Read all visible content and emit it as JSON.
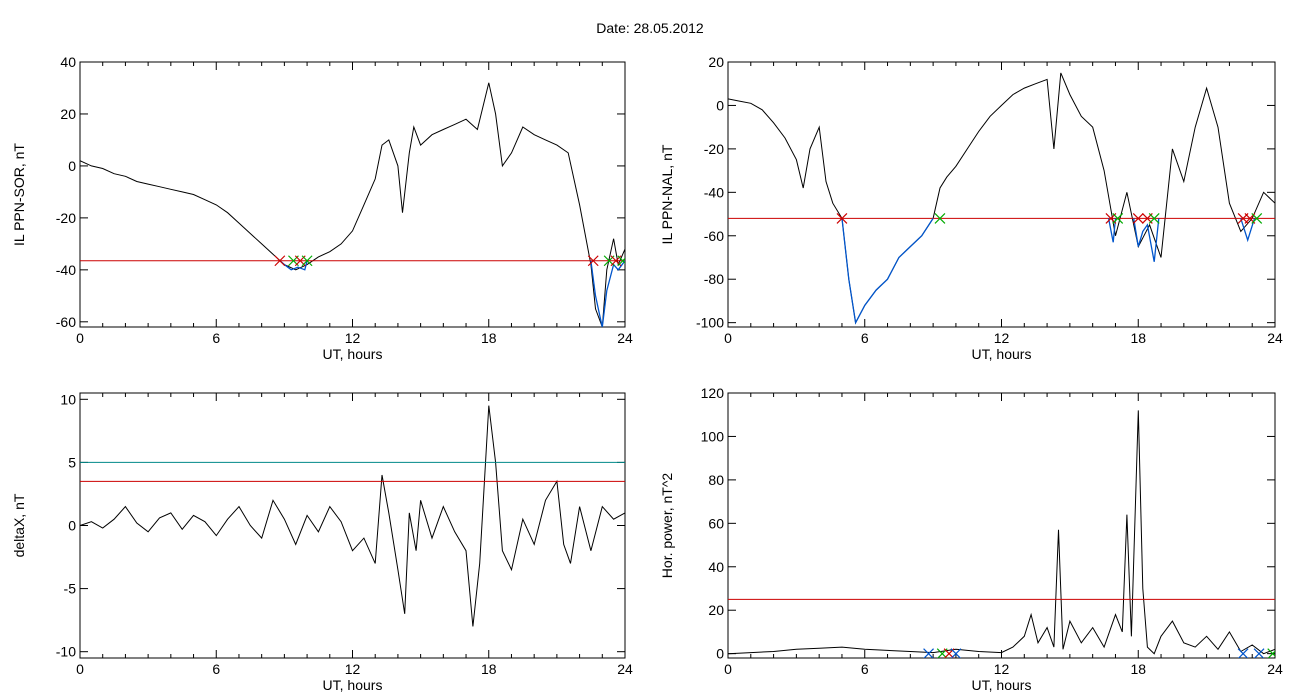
{
  "page": {
    "date_label": "Date:  28.05.2012"
  },
  "colors": {
    "trace": "#000000",
    "below_threshold": "#0055cc",
    "threshold": "#cc0000",
    "upper_threshold": "#008888",
    "marker_start": "#cc0000",
    "marker_end": "#00aa00",
    "marker_blue": "#0055cc"
  },
  "chart_data": [
    {
      "id": "ppn-sor",
      "type": "line",
      "xlabel": "UT, hours",
      "ylabel": "IL PPN-SOR, nT",
      "xlim": [
        0,
        24
      ],
      "ylim": [
        -62,
        40
      ],
      "xticks": [
        0,
        6,
        12,
        18,
        24
      ],
      "yticks": [
        -60,
        -40,
        -20,
        0,
        20,
        40
      ],
      "threshold": -36.5,
      "series": [
        {
          "x": [
            0,
            0.5,
            1,
            1.5,
            2,
            2.5,
            3,
            3.5,
            4,
            4.5,
            5,
            5.5,
            6,
            6.5,
            7,
            7.5,
            8,
            8.5,
            9,
            9.5,
            10,
            10.5,
            11,
            11.5,
            12,
            12.5,
            13,
            13.3,
            13.6,
            14,
            14.2,
            14.5,
            14.7,
            15,
            15.5,
            16,
            16.5,
            17,
            17.5,
            18,
            18.3,
            18.6,
            19,
            19.5,
            20,
            20.5,
            21,
            21.5,
            22,
            22.5,
            22.7,
            23,
            23.2,
            23.5,
            23.7,
            24
          ],
          "y": [
            2,
            0,
            -1,
            -3,
            -4,
            -6,
            -7,
            -8,
            -9,
            -10,
            -11,
            -13,
            -15,
            -18,
            -22,
            -26,
            -30,
            -34,
            -38,
            -40,
            -38,
            -35,
            -33,
            -30,
            -25,
            -15,
            -5,
            8,
            10,
            0,
            -18,
            5,
            15,
            8,
            12,
            14,
            16,
            18,
            14,
            32,
            20,
            0,
            5,
            15,
            12,
            10,
            8,
            5,
            -15,
            -38,
            -55,
            -62,
            -40,
            -28,
            -38,
            -32
          ]
        }
      ],
      "below_segments": [
        {
          "x": [
            8.8,
            9.0,
            9.3,
            9.6,
            9.9,
            10.0
          ],
          "y": [
            -36.5,
            -38,
            -40,
            -39,
            -40,
            -36.5
          ]
        },
        {
          "x": [
            22.5,
            22.7,
            22.9,
            23.0,
            23.2,
            23.5,
            23.7,
            24.0
          ],
          "y": [
            -36.5,
            -50,
            -58,
            -62,
            -48,
            -38,
            -40,
            -36.5
          ]
        }
      ],
      "markers": [
        {
          "x": 8.8,
          "kind": "start"
        },
        {
          "x": 9.4,
          "kind": "end"
        },
        {
          "x": 9.7,
          "kind": "start"
        },
        {
          "x": 10.0,
          "kind": "end"
        },
        {
          "x": 22.6,
          "kind": "start"
        },
        {
          "x": 23.3,
          "kind": "end"
        },
        {
          "x": 23.6,
          "kind": "start"
        },
        {
          "x": 23.9,
          "kind": "end"
        }
      ]
    },
    {
      "id": "ppn-nal",
      "type": "line",
      "xlabel": "UT, hours",
      "ylabel": "IL PPN-NAL, nT",
      "xlim": [
        0,
        24
      ],
      "ylim": [
        -102,
        20
      ],
      "xticks": [
        0,
        6,
        12,
        18,
        24
      ],
      "yticks": [
        -100,
        -80,
        -60,
        -40,
        -20,
        0,
        20
      ],
      "threshold": -52,
      "series": [
        {
          "x": [
            0,
            0.5,
            1,
            1.5,
            2,
            2.5,
            3,
            3.3,
            3.6,
            4,
            4.3,
            4.6,
            5,
            5.3,
            5.6,
            6,
            6.5,
            7,
            7.5,
            8,
            8.5,
            9,
            9.3,
            9.6,
            10,
            10.5,
            11,
            11.5,
            12,
            12.5,
            13,
            13.5,
            14,
            14.3,
            14.6,
            15,
            15.5,
            16,
            16.5,
            17,
            17.5,
            18,
            18.5,
            19,
            19.5,
            20,
            20.5,
            21,
            21.5,
            22,
            22.5,
            23,
            23.5,
            24
          ],
          "y": [
            3,
            2,
            1,
            -2,
            -8,
            -15,
            -25,
            -38,
            -20,
            -10,
            -35,
            -45,
            -52,
            -80,
            -100,
            -92,
            -85,
            -80,
            -70,
            -65,
            -60,
            -52,
            -38,
            -33,
            -28,
            -20,
            -12,
            -5,
            0,
            5,
            8,
            10,
            12,
            -20,
            15,
            5,
            -5,
            -10,
            -30,
            -60,
            -40,
            -65,
            -55,
            -70,
            -20,
            -35,
            -10,
            8,
            -10,
            -45,
            -58,
            -52,
            -40,
            -45
          ]
        }
      ],
      "below_segments": [
        {
          "x": [
            5.0,
            5.3,
            5.6,
            6.0,
            6.5,
            7.0,
            7.5,
            8.0,
            8.5,
            9.0
          ],
          "y": [
            -52,
            -80,
            -100,
            -92,
            -85,
            -80,
            -70,
            -65,
            -60,
            -52
          ]
        },
        {
          "x": [
            16.7,
            16.9,
            17.0
          ],
          "y": [
            -52,
            -63,
            -52
          ]
        },
        {
          "x": [
            17.8,
            18.0,
            18.2,
            18.4,
            18.7,
            18.9
          ],
          "y": [
            -52,
            -65,
            -58,
            -55,
            -72,
            -52
          ]
        },
        {
          "x": [
            22.5,
            22.8,
            23.1
          ],
          "y": [
            -52,
            -62,
            -52
          ]
        }
      ],
      "markers": [
        {
          "x": 5.0,
          "kind": "start"
        },
        {
          "x": 9.3,
          "kind": "end"
        },
        {
          "x": 16.8,
          "kind": "start"
        },
        {
          "x": 17.1,
          "kind": "end"
        },
        {
          "x": 18.0,
          "kind": "start"
        },
        {
          "x": 18.4,
          "kind": "start"
        },
        {
          "x": 18.7,
          "kind": "end"
        },
        {
          "x": 22.6,
          "kind": "start"
        },
        {
          "x": 22.9,
          "kind": "start"
        },
        {
          "x": 23.2,
          "kind": "end"
        }
      ]
    },
    {
      "id": "deltax",
      "type": "line",
      "xlabel": "UT, hours",
      "ylabel": "deltaX, nT",
      "xlim": [
        0,
        24
      ],
      "ylim": [
        -10.5,
        10.5
      ],
      "xticks": [
        0,
        6,
        12,
        18,
        24
      ],
      "yticks": [
        -10,
        -5,
        0,
        5,
        10
      ],
      "threshold": 3.5,
      "upper_threshold": 5,
      "series": [
        {
          "x": [
            0,
            0.5,
            1,
            1.5,
            2,
            2.5,
            3,
            3.5,
            4,
            4.5,
            5,
            5.5,
            6,
            6.5,
            7,
            7.5,
            8,
            8.5,
            9,
            9.5,
            10,
            10.5,
            11,
            11.5,
            12,
            12.5,
            13,
            13.3,
            13.6,
            14,
            14.3,
            14.5,
            14.8,
            15,
            15.5,
            16,
            16.5,
            17,
            17.3,
            17.6,
            18,
            18.3,
            18.6,
            19,
            19.5,
            20,
            20.5,
            21,
            21.3,
            21.6,
            22,
            22.5,
            23,
            23.5,
            24
          ],
          "y": [
            0,
            0.3,
            -0.2,
            0.5,
            1.5,
            0.2,
            -0.5,
            0.6,
            1,
            -0.3,
            0.8,
            0.3,
            -0.8,
            0.5,
            1.5,
            0,
            -1,
            2,
            0.5,
            -1.5,
            0.8,
            -0.5,
            1.5,
            0.3,
            -2,
            -1,
            -3,
            4,
            1,
            -3.5,
            -7,
            1,
            -2,
            2,
            -1,
            1.5,
            -0.5,
            -2,
            -8,
            -3,
            9.5,
            5,
            -2,
            -3.5,
            0.5,
            -1.5,
            2,
            3.5,
            -1.5,
            -3,
            1.5,
            -2,
            1.5,
            0.5,
            1
          ]
        }
      ],
      "below_segments": [],
      "markers": []
    },
    {
      "id": "hor-power",
      "type": "line",
      "xlabel": "UT, hours",
      "ylabel": "Hor. power, nT^2",
      "xlim": [
        0,
        24
      ],
      "ylim": [
        -2,
        120
      ],
      "xticks": [
        0,
        6,
        12,
        18,
        24
      ],
      "yticks": [
        0,
        20,
        40,
        60,
        80,
        100,
        120
      ],
      "threshold": 25,
      "series": [
        {
          "x": [
            0,
            1,
            2,
            3,
            4,
            5,
            6,
            7,
            8,
            9,
            10,
            11,
            12,
            12.5,
            13,
            13.3,
            13.6,
            14,
            14.3,
            14.5,
            14.7,
            15,
            15.5,
            16,
            16.5,
            17,
            17.3,
            17.5,
            17.7,
            18,
            18.2,
            18.4,
            18.7,
            19,
            19.5,
            20,
            20.5,
            21,
            21.5,
            22,
            22.5,
            23,
            23.5,
            24
          ],
          "y": [
            0,
            0.5,
            1,
            2,
            2.5,
            3,
            2,
            1.5,
            1,
            0.5,
            2,
            1,
            0.5,
            3,
            8,
            18,
            5,
            12,
            3,
            57,
            2,
            15,
            5,
            12,
            3,
            18,
            10,
            64,
            8,
            112,
            30,
            3,
            0,
            8,
            15,
            5,
            3,
            8,
            2,
            10,
            1,
            4,
            0,
            2
          ]
        }
      ],
      "below_segments": [],
      "markers": [
        {
          "x": 8.8,
          "kind": "blue"
        },
        {
          "x": 9.4,
          "kind": "end"
        },
        {
          "x": 9.7,
          "kind": "start"
        },
        {
          "x": 10.0,
          "kind": "blue"
        },
        {
          "x": 22.6,
          "kind": "blue"
        },
        {
          "x": 23.3,
          "kind": "blue"
        },
        {
          "x": 23.9,
          "kind": "end"
        }
      ]
    }
  ]
}
